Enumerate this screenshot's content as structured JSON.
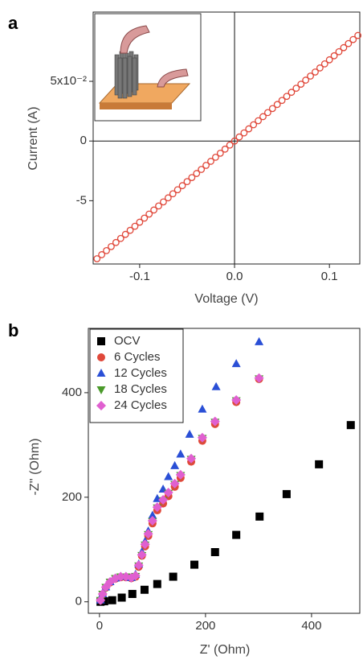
{
  "chart_data": [
    {
      "type": "scatter",
      "panel_label": "a",
      "xlabel": "Voltage (V)",
      "ylabel": "Current (A)",
      "x": [
        -0.145,
        -0.14,
        -0.135,
        -0.13,
        -0.125,
        -0.12,
        -0.115,
        -0.11,
        -0.105,
        -0.1,
        -0.095,
        -0.09,
        -0.085,
        -0.08,
        -0.075,
        -0.07,
        -0.065,
        -0.06,
        -0.055,
        -0.05,
        -0.045,
        -0.04,
        -0.035,
        -0.03,
        -0.025,
        -0.02,
        -0.015,
        -0.01,
        -0.005,
        0,
        0.005,
        0.01,
        0.015,
        0.02,
        0.025,
        0.03,
        0.035,
        0.04,
        0.045,
        0.05,
        0.055,
        0.06,
        0.065,
        0.07,
        0.075,
        0.08,
        0.085,
        0.09,
        0.095,
        0.1,
        0.105,
        0.11,
        0.115,
        0.12,
        0.125,
        0.13
      ],
      "values": [
        -0.0986,
        -0.0952,
        -0.0918,
        -0.0884,
        -0.085,
        -0.0816,
        -0.0782,
        -0.0748,
        -0.0714,
        -0.068,
        -0.0646,
        -0.0612,
        -0.0578,
        -0.0544,
        -0.051,
        -0.0476,
        -0.0442,
        -0.0408,
        -0.0374,
        -0.034,
        -0.0306,
        -0.0272,
        -0.0238,
        -0.0204,
        -0.017,
        -0.0136,
        -0.0102,
        -0.0068,
        -0.0034,
        0,
        0.0034,
        0.0068,
        0.0102,
        0.0136,
        0.017,
        0.0204,
        0.0238,
        0.0272,
        0.0306,
        0.034,
        0.0374,
        0.0408,
        0.0442,
        0.0476,
        0.051,
        0.0544,
        0.0578,
        0.0612,
        0.0646,
        0.068,
        0.0714,
        0.0748,
        0.0782,
        0.0816,
        0.085,
        0.0884
      ],
      "color": "#e0483a",
      "marker": "open-circle",
      "xlim": [
        -0.149,
        0.132
      ],
      "ylim": [
        -0.103,
        0.108
      ],
      "xticks": [
        -0.1,
        {
          "value": 0,
          "label": "0.0"
        },
        0.1
      ],
      "yticks": [
        {
          "value": -0.05,
          "label": "-5"
        },
        0,
        {
          "value": 0.05,
          "label": "5x10⁻²"
        }
      ],
      "zero_lines": true
    },
    {
      "type": "scatter",
      "panel_label": "b",
      "xlabel": "Z' (Ohm)",
      "ylabel": "-Z'' (Ohm)",
      "xlim": [
        -21,
        491
      ],
      "ylim": [
        -22,
        523
      ],
      "xticks": [
        0,
        200,
        400
      ],
      "yticks": [
        0,
        200,
        400
      ],
      "legend": "upper left",
      "series": [
        {
          "name": "OCV",
          "color": "#000000",
          "marker": "square",
          "x": [
            2,
            9,
            24,
            42,
            62,
            85,
            109,
            139,
            179,
            218,
            258,
            302,
            353,
            414,
            474
          ],
          "values": [
            0,
            1,
            3,
            8,
            15,
            23,
            34,
            48,
            71,
            95,
            128,
            163,
            206,
            263,
            338
          ]
        },
        {
          "name": "6 Cycles",
          "color": "#e0483a",
          "marker": "circle",
          "x": [
            2,
            6,
            12,
            20,
            30,
            40,
            50,
            60,
            68,
            74,
            80,
            86,
            92,
            100,
            109,
            120,
            130,
            142,
            153,
            173,
            194,
            218,
            258,
            301
          ],
          "values": [
            3,
            14,
            27,
            37,
            44,
            47,
            47,
            45,
            48,
            67,
            88,
            106,
            126,
            150,
            175,
            188,
            202,
            220,
            237,
            268,
            308,
            340,
            382,
            426
          ]
        },
        {
          "name": "12 Cycles",
          "color": "#2a4fd6",
          "marker": "triangle-up",
          "x": [
            2,
            6,
            12,
            20,
            30,
            40,
            50,
            60,
            68,
            74,
            80,
            86,
            92,
            100,
            109,
            120,
            130,
            142,
            153,
            170,
            194,
            220,
            258,
            301
          ],
          "values": [
            3,
            15,
            28,
            38,
            45,
            48,
            48,
            46,
            52,
            72,
            95,
            115,
            135,
            165,
            197,
            215,
            239,
            260,
            282,
            320,
            368,
            411,
            455,
            497
          ]
        },
        {
          "name": "18 Cycles",
          "color": "#4a9a2a",
          "marker": "triangle-down",
          "x": [
            2,
            6,
            12,
            20,
            30,
            40,
            50,
            60,
            68,
            74,
            80,
            86,
            92,
            100,
            109,
            120,
            130,
            142,
            153,
            173,
            194,
            218,
            258,
            301
          ],
          "values": [
            3,
            15,
            28,
            38,
            45,
            48,
            48,
            46,
            49,
            69,
            89,
            109,
            129,
            154,
            180,
            194,
            208,
            225,
            242,
            273,
            313,
            344,
            385,
            427
          ]
        },
        {
          "name": "24 Cycles",
          "color": "#e060d0",
          "marker": "diamond",
          "x": [
            2,
            6,
            12,
            20,
            30,
            40,
            50,
            60,
            68,
            74,
            80,
            86,
            92,
            100,
            109,
            120,
            130,
            142,
            153,
            173,
            194,
            218,
            258,
            301
          ],
          "values": [
            3,
            15,
            28,
            38,
            45,
            48,
            48,
            46,
            50,
            70,
            90,
            110,
            130,
            155,
            181,
            195,
            209,
            226,
            243,
            274,
            314,
            345,
            386,
            428
          ]
        }
      ]
    }
  ]
}
